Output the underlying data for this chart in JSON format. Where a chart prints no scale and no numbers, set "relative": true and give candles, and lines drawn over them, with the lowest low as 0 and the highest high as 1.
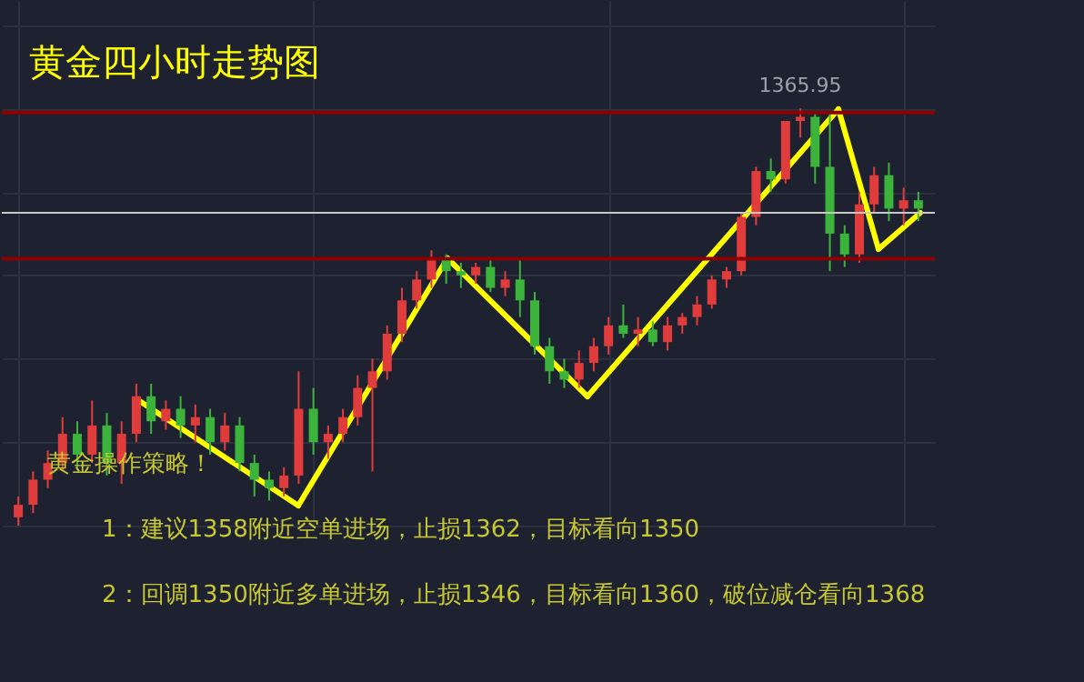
{
  "chart_data": {
    "type": "candlestick",
    "relative": true,
    "title": "黄金四小时走势图",
    "categories": [
      null,
      null,
      null,
      null,
      null,
      null,
      null,
      null,
      null,
      null,
      null,
      null,
      null,
      null,
      null,
      null,
      null,
      null,
      null,
      null,
      null,
      null,
      null,
      null,
      null,
      null,
      null,
      null,
      null,
      null,
      null,
      null,
      null,
      null,
      null,
      null,
      null,
      null,
      null,
      null,
      null,
      null,
      null,
      null,
      null,
      null,
      null,
      null,
      null,
      null,
      null,
      null,
      null,
      null,
      null,
      null,
      null,
      null,
      null,
      null,
      null,
      null
    ],
    "ohlc": [
      [
        0.02,
        0.07,
        0,
        0.05
      ],
      [
        0.05,
        0.13,
        0.03,
        0.11
      ],
      [
        0.11,
        0.18,
        0.09,
        0.15
      ],
      [
        0.15,
        0.26,
        0.13,
        0.22
      ],
      [
        0.22,
        0.25,
        0.14,
        0.17
      ],
      [
        0.17,
        0.3,
        0.15,
        0.24
      ],
      [
        0.24,
        0.27,
        0.12,
        0.15
      ],
      [
        0.15,
        0.25,
        0.1,
        0.22
      ],
      [
        0.22,
        0.34,
        0.2,
        0.31
      ],
      [
        0.31,
        0.34,
        0.22,
        0.25
      ],
      [
        0.25,
        0.3,
        0.23,
        0.28
      ],
      [
        0.28,
        0.31,
        0.21,
        0.24
      ],
      [
        0.24,
        0.29,
        0.2,
        0.26
      ],
      [
        0.26,
        0.28,
        0.17,
        0.2
      ],
      [
        0.2,
        0.27,
        0.18,
        0.24
      ],
      [
        0.24,
        0.26,
        0.13,
        0.15
      ],
      [
        0.15,
        0.17,
        0.07,
        0.11
      ],
      [
        0.11,
        0.13,
        0.06,
        0.09
      ],
      [
        0.09,
        0.14,
        0.07,
        0.12
      ],
      [
        0.12,
        0.37,
        0.1,
        0.28
      ],
      [
        0.28,
        0.33,
        0.17,
        0.2
      ],
      [
        0.2,
        0.24,
        0.16,
        0.22
      ],
      [
        0.22,
        0.28,
        0.2,
        0.26
      ],
      [
        0.26,
        0.36,
        0.24,
        0.33
      ],
      [
        0.33,
        0.4,
        0.13,
        0.37
      ],
      [
        0.37,
        0.48,
        0.35,
        0.46
      ],
      [
        0.46,
        0.57,
        0.44,
        0.54
      ],
      [
        0.54,
        0.61,
        0.52,
        0.59
      ],
      [
        0.59,
        0.66,
        0.57,
        0.64
      ],
      [
        0.64,
        0.65,
        0.58,
        0.61
      ],
      [
        0.61,
        0.63,
        0.57,
        0.6
      ],
      [
        0.6,
        0.63,
        0.58,
        0.62
      ],
      [
        0.62,
        0.64,
        0.56,
        0.57
      ],
      [
        0.57,
        0.61,
        0.55,
        0.59
      ],
      [
        0.59,
        0.64,
        0.5,
        0.54
      ],
      [
        0.54,
        0.56,
        0.41,
        0.43
      ],
      [
        0.43,
        0.45,
        0.34,
        0.37
      ],
      [
        0.37,
        0.4,
        0.33,
        0.35
      ],
      [
        0.35,
        0.42,
        0.33,
        0.39
      ],
      [
        0.39,
        0.45,
        0.37,
        0.43
      ],
      [
        0.43,
        0.5,
        0.41,
        0.48
      ],
      [
        0.48,
        0.53,
        0.45,
        0.46
      ],
      [
        0.46,
        0.5,
        0.43,
        0.47
      ],
      [
        0.47,
        0.49,
        0.43,
        0.44
      ],
      [
        0.44,
        0.5,
        0.42,
        0.48
      ],
      [
        0.48,
        0.51,
        0.46,
        0.5
      ],
      [
        0.5,
        0.55,
        0.48,
        0.53
      ],
      [
        0.53,
        0.6,
        0.52,
        0.59
      ],
      [
        0.59,
        0.62,
        0.57,
        0.61
      ],
      [
        0.61,
        0.75,
        0.6,
        0.74
      ],
      [
        0.74,
        0.86,
        0.72,
        0.85
      ],
      [
        0.85,
        0.88,
        0.8,
        0.83
      ],
      [
        0.83,
        0.97,
        0.82,
        0.97
      ],
      [
        0.97,
        1.0,
        0.93,
        0.98
      ],
      [
        0.98,
        0.99,
        0.82,
        0.86
      ],
      [
        0.86,
        0.99,
        0.61,
        0.7
      ],
      [
        0.7,
        0.72,
        0.62,
        0.65
      ],
      [
        0.65,
        0.8,
        0.63,
        0.77
      ],
      [
        0.77,
        0.86,
        0.75,
        0.84
      ],
      [
        0.84,
        0.87,
        0.73,
        0.76
      ],
      [
        0.76,
        0.81,
        0.72,
        0.78
      ],
      [
        0.78,
        0.8,
        0.73,
        0.76
      ]
    ],
    "colors": [
      "#e03c3c",
      "#e03c3c",
      "#e03c3c",
      "#e03c3c",
      "#3cb43c",
      "#e03c3c",
      "#3cb43c",
      "#e03c3c",
      "#e03c3c",
      "#3cb43c",
      "#e03c3c",
      "#3cb43c",
      "#e03c3c",
      "#3cb43c",
      "#e03c3c",
      "#3cb43c",
      "#3cb43c",
      "#3cb43c",
      "#e03c3c",
      "#e03c3c",
      "#3cb43c",
      "#e03c3c",
      "#e03c3c",
      "#e03c3c",
      "#e03c3c",
      "#e03c3c",
      "#e03c3c",
      "#e03c3c",
      "#e03c3c",
      "#3cb43c",
      "#3cb43c",
      "#e03c3c",
      "#3cb43c",
      "#e03c3c",
      "#3cb43c",
      "#3cb43c",
      "#3cb43c",
      "#3cb43c",
      "#e03c3c",
      "#e03c3c",
      "#e03c3c",
      "#3cb43c",
      "#e03c3c",
      "#3cb43c",
      "#e03c3c",
      "#e03c3c",
      "#e03c3c",
      "#e03c3c",
      "#e03c3c",
      "#e03c3c",
      "#e03c3c",
      "#3cb43c",
      "#e03c3c",
      "#e03c3c",
      "#3cb43c",
      "#3cb43c",
      "#3cb43c",
      "#e03c3c",
      "#e03c3c",
      "#3cb43c",
      "#e03c3c",
      "#3cb43c"
    ],
    "ref_lines": [
      {
        "axis": "y",
        "value": 0.99,
        "color": "#8b0000"
      },
      {
        "axis": "y",
        "value": 0.64,
        "color": "#8b0000"
      },
      {
        "axis": "y",
        "value": 0.75,
        "color": "#c8c8c8"
      }
    ],
    "annotations": [
      "1365.95",
      "黄金操作策略！",
      "1：建议1358附近空单进场，止损1362，目标看向1350",
      "2：回调1350附近多单进场，止损1346，目标看向1360，破位减仓看向1368"
    ],
    "grid": true
  }
}
